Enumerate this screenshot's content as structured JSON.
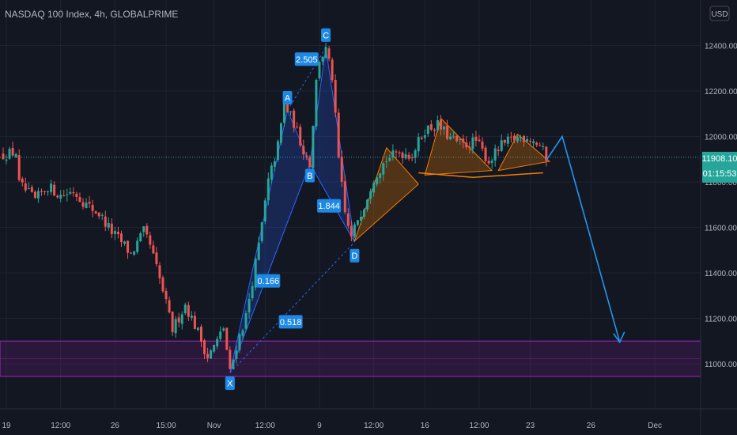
{
  "header": {
    "title": "NASDAQ 100 Index, 4h, GLOBALPRIME",
    "currency": "USD"
  },
  "price_badge": {
    "price": "11908.10",
    "countdown": "01:15:53",
    "color": "#26a69a"
  },
  "colors": {
    "background": "#131722",
    "grid": "#1f2330",
    "up": "#26a69a",
    "down": "#ef5350",
    "zone": "#8e24aa",
    "harmonic": "#2962ff",
    "pattern": "#f57c00",
    "projection": "#2196f3",
    "label_bg": "#1e88e5"
  },
  "chart_data": {
    "type": "candlestick",
    "symbol": "NASDAQ 100 Index",
    "interval": "4h",
    "ylim": [
      10780,
      12690
    ],
    "y_ticks": [
      11000,
      11200,
      11400,
      11600,
      11800,
      12000,
      12200,
      12400
    ],
    "y_tick_labels": [
      "11000.00",
      "11200.00",
      "11400.00",
      "11600.00",
      "11800.00",
      "12000.00",
      "12200.00",
      "12400.00"
    ],
    "x_ticks": [
      {
        "bar": 1,
        "label": "19"
      },
      {
        "bar": 18,
        "label": "12:00"
      },
      {
        "bar": 35,
        "label": "26"
      },
      {
        "bar": 51,
        "label": "15:00"
      },
      {
        "bar": 66,
        "label": "Nov"
      },
      {
        "bar": 82,
        "label": "12:00"
      },
      {
        "bar": 99,
        "label": "9"
      },
      {
        "bar": 116,
        "label": "12:00"
      },
      {
        "bar": 132,
        "label": "16"
      },
      {
        "bar": 149,
        "label": "12:00"
      },
      {
        "bar": 165,
        "label": "23"
      },
      {
        "bar": 184,
        "label": "26"
      },
      {
        "bar": 204,
        "label": "Dec"
      }
    ],
    "close_series": [
      [
        0,
        11920
      ],
      [
        4,
        11930
      ],
      [
        5,
        11790
      ],
      [
        10,
        11720
      ],
      [
        14,
        11780
      ],
      [
        18,
        11740
      ],
      [
        22,
        11760
      ],
      [
        26,
        11700
      ],
      [
        30,
        11660
      ],
      [
        34,
        11580
      ],
      [
        38,
        11520
      ],
      [
        40,
        11480
      ],
      [
        44,
        11580
      ],
      [
        46,
        11520
      ],
      [
        50,
        11320
      ],
      [
        53,
        11150
      ],
      [
        57,
        11260
      ],
      [
        61,
        11140
      ],
      [
        64,
        11030
      ],
      [
        67,
        11100
      ],
      [
        69,
        11160
      ],
      [
        71,
        10960
      ],
      [
        73,
        11080
      ],
      [
        76,
        11210
      ],
      [
        80,
        11520
      ],
      [
        83,
        11800
      ],
      [
        86,
        11960
      ],
      [
        88,
        12140
      ],
      [
        91,
        12060
      ],
      [
        94,
        11940
      ],
      [
        96,
        11880
      ],
      [
        98,
        12240
      ],
      [
        99,
        12340
      ],
      [
        101,
        12380
      ],
      [
        103,
        12260
      ],
      [
        105,
        11900
      ],
      [
        107,
        11660
      ],
      [
        109,
        11550
      ],
      [
        111,
        11640
      ],
      [
        113,
        11700
      ],
      [
        116,
        11820
      ],
      [
        120,
        11900
      ],
      [
        124,
        11930
      ],
      [
        128,
        11920
      ],
      [
        132,
        12030
      ],
      [
        136,
        12050
      ],
      [
        140,
        11990
      ],
      [
        144,
        11960
      ],
      [
        148,
        11980
      ],
      [
        152,
        11890
      ],
      [
        156,
        11960
      ],
      [
        160,
        11990
      ],
      [
        164,
        12000
      ],
      [
        168,
        11960
      ],
      [
        170,
        11908
      ]
    ],
    "harmonic_pattern": {
      "points": [
        {
          "label": "X",
          "bar": 71,
          "price": 10960
        },
        {
          "label": "A",
          "bar": 89,
          "price": 12115
        },
        {
          "label": "B",
          "bar": 96,
          "price": 11880
        },
        {
          "label": "C",
          "bar": 101,
          "price": 12390
        },
        {
          "label": "D",
          "bar": 110,
          "price": 11535
        }
      ],
      "ratios": [
        {
          "label": "0.166",
          "bar": 83,
          "price": 11365
        },
        {
          "label": "2.505",
          "bar": 95,
          "price": 12340
        },
        {
          "label": "1.844",
          "bar": 102,
          "price": 11695
        },
        {
          "label": "0.518",
          "bar": 90,
          "price": 11185
        }
      ]
    },
    "support_zone": [
      10945,
      11100
    ],
    "current_price": 11908.1,
    "projection": [
      [
        170,
        11895
      ],
      [
        175,
        12000
      ],
      [
        193,
        11095
      ]
    ],
    "head_shoulders": {
      "triangles": [
        [
          [
            110,
            11540
          ],
          [
            120,
            11950
          ],
          [
            130,
            11790
          ]
        ],
        [
          [
            132,
            11830
          ],
          [
            137,
            12080
          ],
          [
            153,
            11850
          ]
        ],
        [
          [
            155,
            11850
          ],
          [
            161,
            12010
          ],
          [
            171,
            11890
          ]
        ]
      ],
      "neckline": [
        [
          130,
          11840
        ],
        [
          147,
          11820
        ],
        [
          169,
          11840
        ]
      ]
    }
  }
}
